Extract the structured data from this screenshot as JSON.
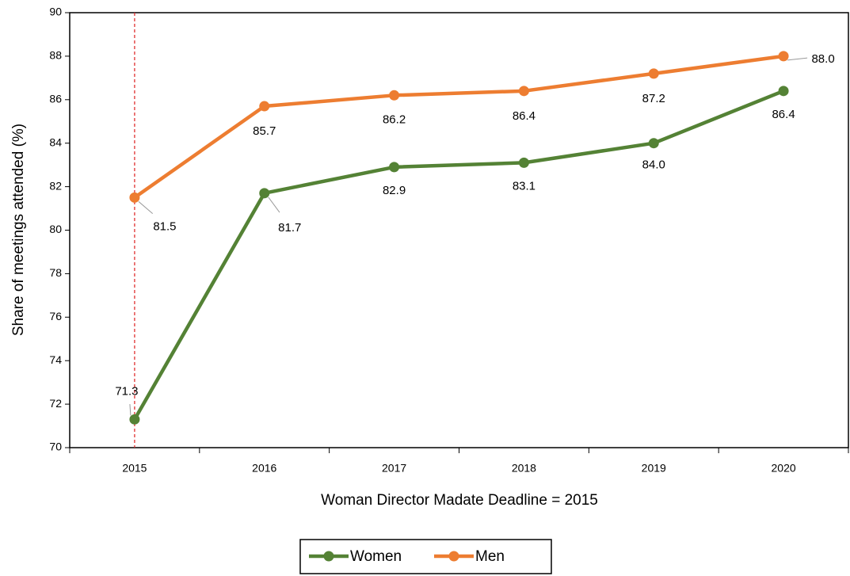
{
  "chart_data": {
    "type": "line",
    "x_label": "Woman Director Madate Deadline = 2015",
    "y_label": "Share of meetings attended (%)",
    "categories": [
      "2015",
      "2016",
      "2017",
      "2018",
      "2019",
      "2020"
    ],
    "series": [
      {
        "name": "Women",
        "color": "#548235",
        "values": [
          71.3,
          81.7,
          82.9,
          83.1,
          84.0,
          86.4
        ],
        "value_labels": [
          "71.3",
          "81.7",
          "82.9",
          "83.1",
          "84.0",
          "86.4"
        ]
      },
      {
        "name": "Men",
        "color": "#ed7d31",
        "values": [
          81.5,
          85.7,
          86.2,
          86.4,
          87.2,
          88.0
        ],
        "value_labels": [
          "81.5",
          "85.7",
          "86.2",
          "86.4",
          "87.2",
          "88.0"
        ]
      }
    ],
    "ylim": [
      70,
      90
    ],
    "yticks": [
      70,
      72,
      74,
      76,
      78,
      80,
      82,
      84,
      86,
      88,
      90
    ],
    "grid": false,
    "legend": "bottom"
  }
}
